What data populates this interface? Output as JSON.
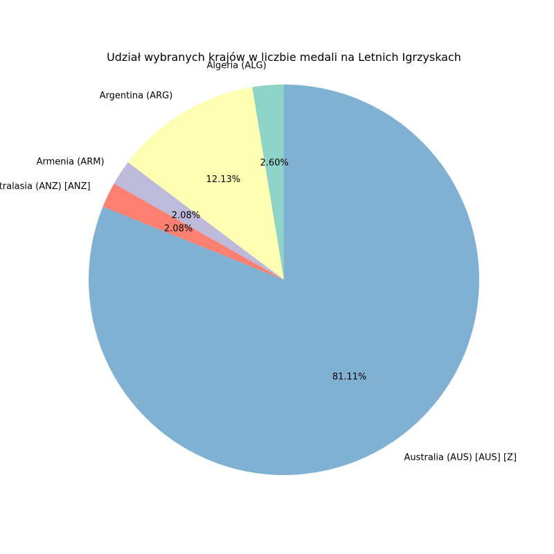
{
  "chart_data": {
    "type": "pie",
    "title": "Udział wybranych krajów w liczbie medali na Letnich Igrzyskach",
    "start_angle_deg": 90,
    "direction": "counterclockwise",
    "slices": [
      {
        "label": "Algeria (ALG)",
        "percent": 2.6,
        "percent_label": "2.60%",
        "color": "#8dd3c7"
      },
      {
        "label": "Argentina (ARG)",
        "percent": 12.13,
        "percent_label": "12.13%",
        "color": "#ffffb3"
      },
      {
        "label": "Armenia (ARM)",
        "percent": 2.08,
        "percent_label": "2.08%",
        "color": "#bebada"
      },
      {
        "label": "Australasia (ANZ) [ANZ]",
        "percent": 2.08,
        "percent_label": "2.08%",
        "color": "#fb8072"
      },
      {
        "label": "Australia (AUS) [AUS] [Z]",
        "percent": 81.11,
        "percent_label": "81.11%",
        "color": "#80b1d3"
      }
    ]
  }
}
